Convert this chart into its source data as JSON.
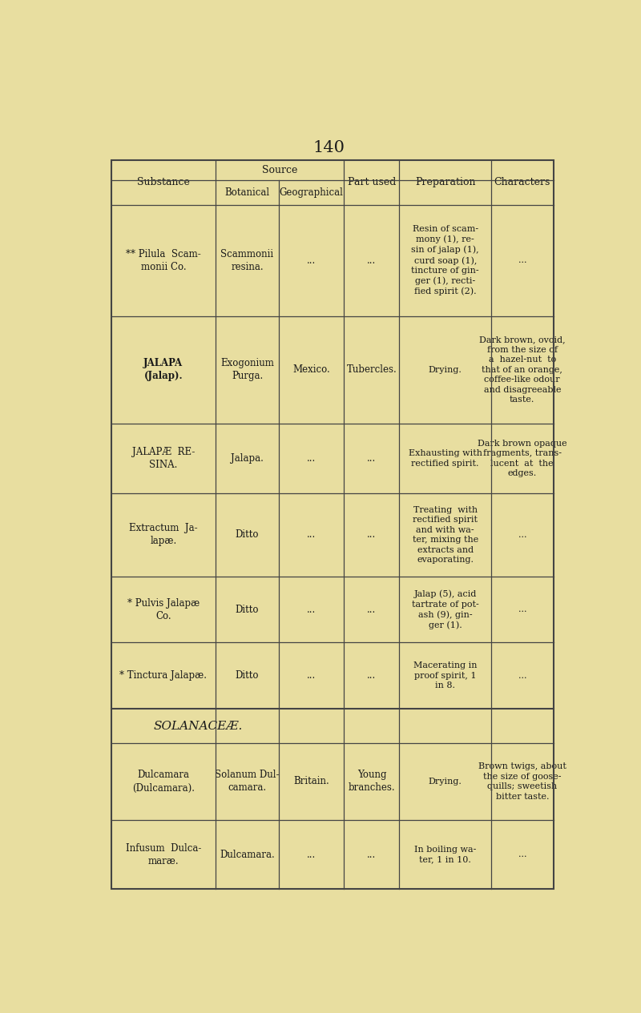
{
  "page_number": "140",
  "bg_color": "#e8dea0",
  "cell_bg": "#f0ead8",
  "border_color": "#444444",
  "text_color": "#1a1a1a",
  "header": {
    "source_label": "Source",
    "substance_label": "Substance",
    "botanical_label": "Botanical",
    "geographical_label": "Geographical",
    "part_used_label": "Part used",
    "preparation_label": "Preparation",
    "characters_label": "Characters"
  },
  "section1_header": "SOLANACEÆ.",
  "rows": [
    {
      "substance": "** Pilula  Scam-\nmonii Co.",
      "botanical": "Scammonii\nresina.",
      "geographical": "...",
      "part_used": "...",
      "preparation": "Resin of scam-\nmony (1), re-\nsin of jalap (1),\ncurd soap (1),\ntincture of gin-\nger (1), recti-\nfied spirit (2).",
      "characters": "...",
      "bold_substance": false,
      "section_break_after": true
    },
    {
      "substance": "JALAPA\n(Jalap).",
      "botanical": "Exogonium\nPurga.",
      "geographical": "Mexico.",
      "part_used": "Tubercles.",
      "preparation": "Drying.",
      "characters": "Dark brown, ovoid,\nfrom the size of\na  hazel-nut  to\nthat of an orange,\ncoffee-like odour\nand disagreeable\ntaste.",
      "bold_substance": true,
      "section_break_after": false
    },
    {
      "substance": "JALAPÆ  RE-\nSINA.",
      "botanical": "Jalapa.",
      "geographical": "...",
      "part_used": "...",
      "preparation": "Exhausting with\nrectified spirit.",
      "characters": "Dark brown opaque\nfragments, trans-\nlucent  at  the\nedges.",
      "bold_substance": false,
      "section_break_after": false
    },
    {
      "substance": "Extractum  Ja-\nlapæ.",
      "botanical": "Ditto",
      "geographical": "...",
      "part_used": "...",
      "preparation": "Treating  with\nrectified spirit\nand with wa-\nter, mixing the\nextracts and\nevaporating.",
      "characters": "...",
      "bold_substance": false,
      "section_break_after": false
    },
    {
      "substance": "* Pulvis Jalapæ\nCo.",
      "botanical": "Ditto",
      "geographical": "...",
      "part_used": "...",
      "preparation": "Jalap (5), acid\ntartrate of pot-\nash (9), gin-\nger (1).",
      "characters": "...",
      "bold_substance": false,
      "section_break_after": false
    },
    {
      "substance": "* Tinctura Jalapæ.",
      "botanical": "Ditto",
      "geographical": "...",
      "part_used": "...",
      "preparation": "Macerating in\nproof spirit, 1\nin 8.",
      "characters": "...",
      "bold_substance": false,
      "section_break_after": true
    },
    {
      "substance": "Dulcamara\n(Dulcamara).",
      "botanical": "Solanum Dul-\ncamara.",
      "geographical": "Britain.",
      "part_used": "Young\nbranches.",
      "preparation": "Drying.",
      "characters": "Brown twigs, about\nthe size of goose-\nquills; sweetish\nbitter taste.",
      "bold_substance": false,
      "section_break_after": false
    },
    {
      "substance": "Infusum  Dulca-\nmaræ.",
      "botanical": "Dulcamara.",
      "geographical": "...",
      "part_used": "...",
      "preparation": "In boiling wa-\nter, 1 in 10.",
      "characters": "...",
      "bold_substance": false,
      "section_break_after": false
    }
  ]
}
